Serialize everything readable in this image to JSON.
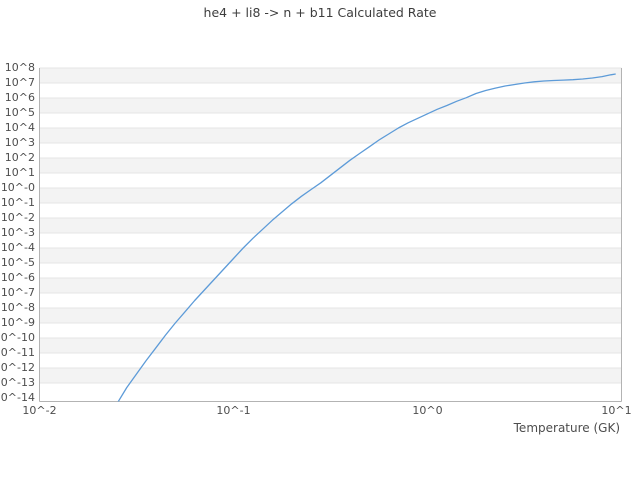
{
  "title": "he4 + li8 -> n + b11 Calculated Rate",
  "chart_data": {
    "type": "line",
    "title": "he4 + li8 -> n + b11 Calculated Rate",
    "xlabel": "Temperature (GK)",
    "ylabel": "",
    "x_axis": {
      "scale": "log10",
      "range_log10": [
        -2,
        1
      ],
      "ticks": [
        {
          "label": "10^-2",
          "log10": -2
        },
        {
          "label": "10^-1",
          "log10": -1
        },
        {
          "label": "10^0",
          "log10": 0
        },
        {
          "label": "10^1",
          "log10": 1
        }
      ]
    },
    "y_axis": {
      "scale": "log10",
      "range_log10": [
        8,
        -14
      ],
      "ticks": [
        {
          "label": "10^8",
          "log10": 8
        },
        {
          "label": "10^7",
          "log10": 7
        },
        {
          "label": "10^6",
          "log10": 6
        },
        {
          "label": "10^5",
          "log10": 5
        },
        {
          "label": "10^4",
          "log10": 4
        },
        {
          "label": "10^3",
          "log10": 3
        },
        {
          "label": "10^2",
          "log10": 2
        },
        {
          "label": "10^1",
          "log10": 1
        },
        {
          "label": "10^-0",
          "log10": 0
        },
        {
          "label": "10^-1",
          "log10": -1
        },
        {
          "label": "10^-2",
          "log10": -2
        },
        {
          "label": "10^-3",
          "log10": -3
        },
        {
          "label": "10^-4",
          "log10": -4
        },
        {
          "label": "10^-5",
          "log10": -5
        },
        {
          "label": "10^-6",
          "log10": -6
        },
        {
          "label": "10^-7",
          "log10": -7
        },
        {
          "label": "10^-8",
          "log10": -8
        },
        {
          "label": "10^-9",
          "log10": -9
        },
        {
          "label": "10^-10",
          "log10": -10
        },
        {
          "label": "10^-11",
          "log10": -11
        },
        {
          "label": "10^-12",
          "log10": -12
        },
        {
          "label": "10^-13",
          "log10": -13
        },
        {
          "label": "10^-14",
          "log10": -14
        }
      ]
    },
    "grid": "horizontal-bands-per-decade",
    "legend": "none",
    "point_format": "[log10_temperature_GK, log10_rate]",
    "series": [
      {
        "name": "calculated-rate",
        "color": "#5d9bd8",
        "points": [
          [
            -1.595,
            -14.25
          ],
          [
            -1.55,
            -13.3
          ],
          [
            -1.5,
            -12.4
          ],
          [
            -1.45,
            -11.5
          ],
          [
            -1.4,
            -10.65
          ],
          [
            -1.35,
            -9.8
          ],
          [
            -1.3,
            -9.0
          ],
          [
            -1.25,
            -8.25
          ],
          [
            -1.2,
            -7.5
          ],
          [
            -1.15,
            -6.8
          ],
          [
            -1.1,
            -6.1
          ],
          [
            -1.05,
            -5.4
          ],
          [
            -1.0,
            -4.7
          ],
          [
            -0.95,
            -4.0
          ],
          [
            -0.9,
            -3.35
          ],
          [
            -0.85,
            -2.75
          ],
          [
            -0.8,
            -2.15
          ],
          [
            -0.75,
            -1.6
          ],
          [
            -0.7,
            -1.05
          ],
          [
            -0.65,
            -0.55
          ],
          [
            -0.6,
            -0.1
          ],
          [
            -0.55,
            0.35
          ],
          [
            -0.5,
            0.85
          ],
          [
            -0.45,
            1.35
          ],
          [
            -0.4,
            1.85
          ],
          [
            -0.35,
            2.3
          ],
          [
            -0.3,
            2.75
          ],
          [
            -0.25,
            3.2
          ],
          [
            -0.2,
            3.6
          ],
          [
            -0.15,
            4.0
          ],
          [
            -0.1,
            4.35
          ],
          [
            -0.05,
            4.65
          ],
          [
            0.0,
            4.95
          ],
          [
            0.05,
            5.25
          ],
          [
            0.1,
            5.5
          ],
          [
            0.15,
            5.78
          ],
          [
            0.2,
            6.02
          ],
          [
            0.25,
            6.3
          ],
          [
            0.3,
            6.5
          ],
          [
            0.35,
            6.66
          ],
          [
            0.4,
            6.8
          ],
          [
            0.45,
            6.9
          ],
          [
            0.5,
            7.0
          ],
          [
            0.55,
            7.08
          ],
          [
            0.6,
            7.13
          ],
          [
            0.65,
            7.17
          ],
          [
            0.7,
            7.19
          ],
          [
            0.75,
            7.22
          ],
          [
            0.8,
            7.27
          ],
          [
            0.85,
            7.33
          ],
          [
            0.9,
            7.43
          ],
          [
            0.945,
            7.55
          ],
          [
            0.97,
            7.6
          ]
        ]
      }
    ]
  },
  "styles": {
    "band_fill": "#f3f3f3",
    "band_edge": "#e6e6e6",
    "frame": "#b3b3b3",
    "line_color": "#5d9bd8",
    "tick_text": "#4d4d4d",
    "title_text": "#3d3d3d"
  }
}
